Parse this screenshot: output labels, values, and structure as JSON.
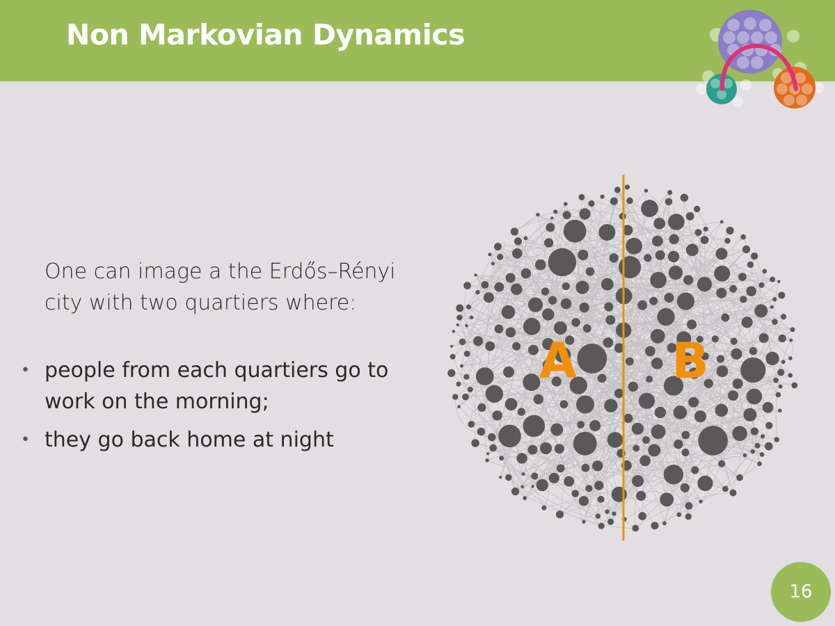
{
  "slide": {
    "title": "Non Markovian Dynamics",
    "intro": "One can image a the Erdős–Rényi city with two quartiers where:",
    "bullets": [
      "people from each quartiers go to work on the morning;",
      "they go back home at night"
    ],
    "page_number": "16"
  },
  "diagram": {
    "label_left": "A",
    "label_right": "B",
    "divider_color": "#f0900a",
    "node_color": "#5a5859",
    "edge_color": "#c4c0c4"
  },
  "colors": {
    "header": "#9bbb59",
    "background": "#e2dee2",
    "logo_purple": "#8a7ec4",
    "logo_teal": "#2aa08a",
    "logo_orange": "#e06c1c",
    "logo_arc": "#e0307a"
  }
}
